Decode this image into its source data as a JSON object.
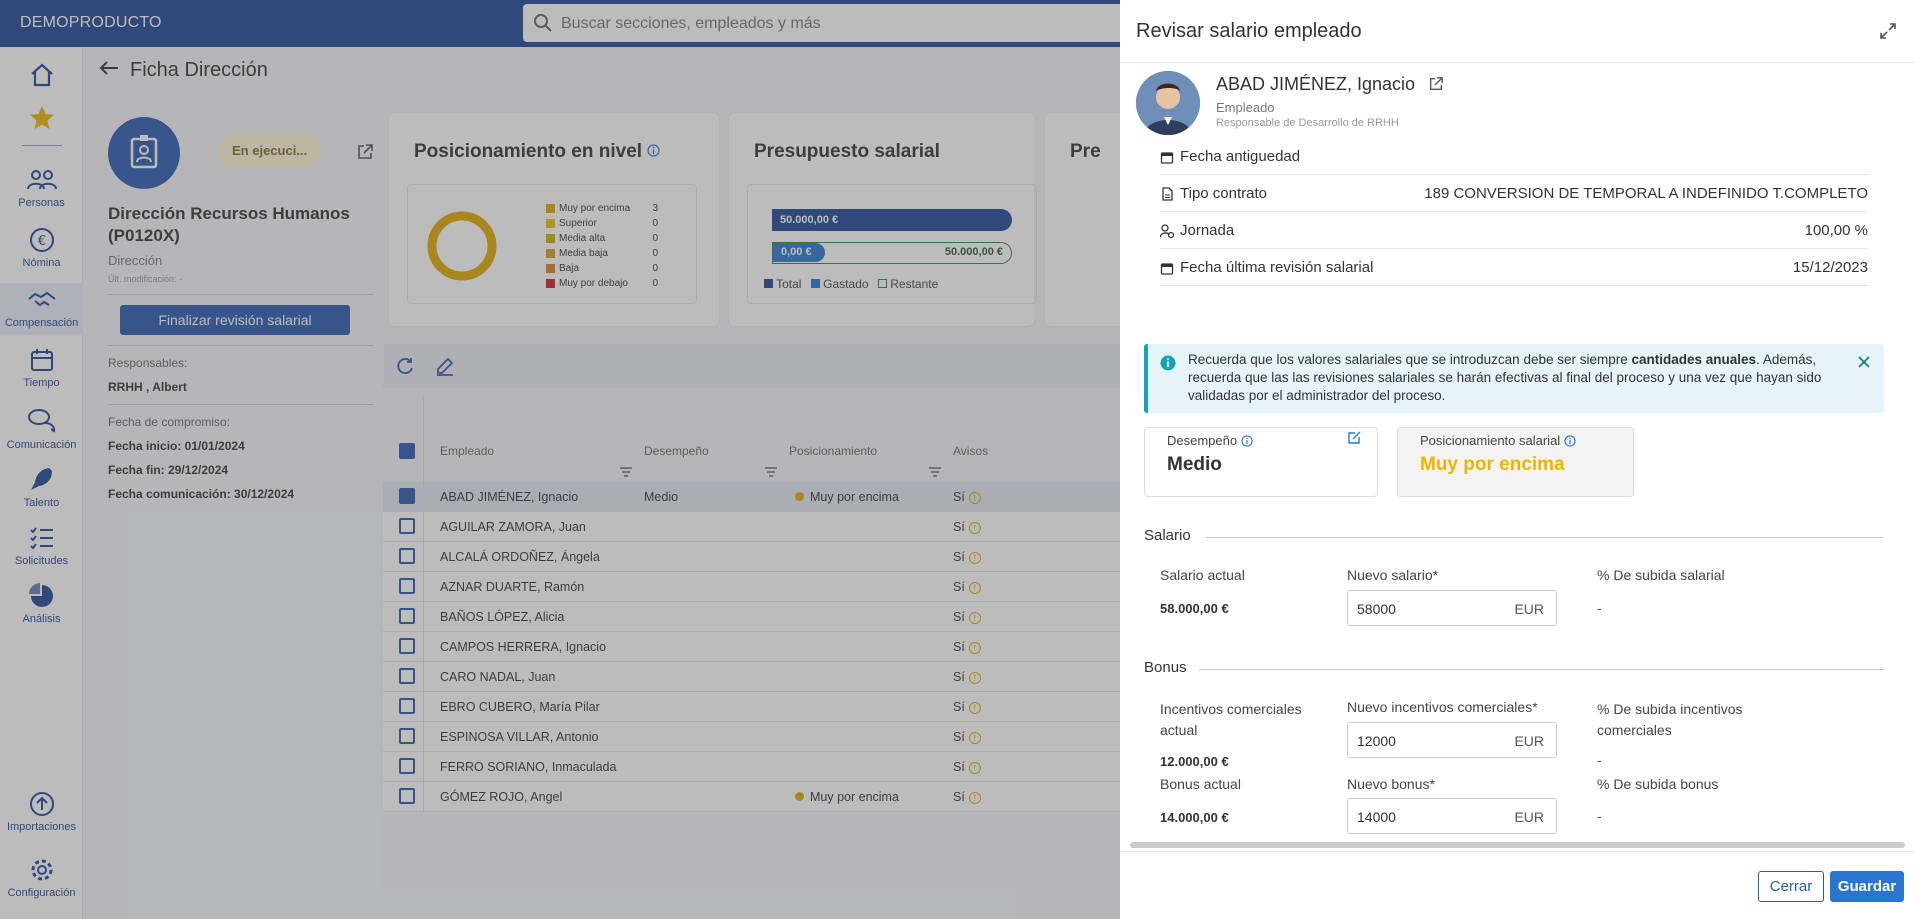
{
  "app": {
    "brand": "DEMOPRODUCTO",
    "search_placeholder": "Buscar secciones, empleados y más"
  },
  "sidebar": {
    "items": [
      {
        "label": "",
        "icon": "home-icon"
      },
      {
        "label": "",
        "icon": "star-icon"
      },
      {
        "label": "Personas",
        "icon": "people-icon"
      },
      {
        "label": "Nómina",
        "icon": "euro-icon"
      },
      {
        "label": "Compensación",
        "icon": "handshake-icon"
      },
      {
        "label": "Tiempo",
        "icon": "calendar-icon"
      },
      {
        "label": "Comunicación",
        "icon": "chat-icon"
      },
      {
        "label": "Talento",
        "icon": "rocket-icon"
      },
      {
        "label": "Solicitudes",
        "icon": "list-icon"
      },
      {
        "label": "Análisis",
        "icon": "pie-icon"
      },
      {
        "label": "Importaciones",
        "icon": "upload-icon"
      },
      {
        "label": "Configuración",
        "icon": "gear-icon"
      }
    ]
  },
  "page": {
    "title": "Ficha Dirección",
    "status": "En ejecuci...",
    "dept_title": "Dirección Recursos Humanos (P0120X)",
    "dept_type": "Dirección",
    "last_modified": "Últ. modificación: -",
    "action_button": "Finalizar revisión salarial",
    "responsables_label": "Responsables:",
    "responsable": "RRHH , Albert",
    "compromiso_label": "Fecha de compromiso:",
    "fecha_inicio": "Fecha inicio: 01/01/2024",
    "fecha_fin": "Fecha fin: 29/12/2024",
    "fecha_comunicacion": "Fecha comunicación: 30/12/2024"
  },
  "cards": {
    "posicionamiento": {
      "title": "Posicionamiento en nivel",
      "legend": [
        {
          "label": "Muy por encima",
          "value": "3",
          "color": "#e0a800"
        },
        {
          "label": "Superior",
          "value": "0",
          "color": "#f0c000"
        },
        {
          "label": "Media alta",
          "value": "0",
          "color": "#c8b400"
        },
        {
          "label": "Media baja",
          "value": "0",
          "color": "#d4a020"
        },
        {
          "label": "Baja",
          "value": "0",
          "color": "#e08020"
        },
        {
          "label": "Muy por debajo",
          "value": "0",
          "color": "#d82020"
        }
      ]
    },
    "presupuesto": {
      "title": "Presupuesto salarial",
      "total": "50.000,00 €",
      "gastado": "0,00 €",
      "restante": "50.000,00 €",
      "legend": [
        "Total",
        "Gastado",
        "Restante"
      ]
    },
    "third_title": "Pre"
  },
  "grid": {
    "columns": [
      "Empleado",
      "Desempeño",
      "Posicionamiento",
      "Avisos"
    ],
    "rows": [
      {
        "name": "ABAD JIMÉNEZ, Ignacio",
        "desempeno": "Medio",
        "posicionamiento": "Muy por encima",
        "avisos": "Sí",
        "selected": true
      },
      {
        "name": "AGUILAR ZAMORA, Juan",
        "desempeno": "",
        "posicionamiento": "",
        "avisos": "Sí",
        "selected": false
      },
      {
        "name": "ALCALÁ ORDOÑEZ, Ángela",
        "desempeno": "",
        "posicionamiento": "",
        "avisos": "Sí",
        "selected": false
      },
      {
        "name": "AZNAR DUARTE, Ramón",
        "desempeno": "",
        "posicionamiento": "",
        "avisos": "Sí",
        "selected": false
      },
      {
        "name": "BAÑOS LÓPEZ, Alicia",
        "desempeno": "",
        "posicionamiento": "",
        "avisos": "Sí",
        "selected": false
      },
      {
        "name": "CAMPOS HERRERA, Ignacio",
        "desempeno": "",
        "posicionamiento": "",
        "avisos": "Sí",
        "selected": false
      },
      {
        "name": "CARO NADAL, Juan",
        "desempeno": "",
        "posicionamiento": "",
        "avisos": "Sí",
        "selected": false
      },
      {
        "name": "EBRO CUBERO, María Pilar",
        "desempeno": "",
        "posicionamiento": "",
        "avisos": "Sí",
        "selected": false
      },
      {
        "name": "ESPINOSA VILLAR, Antonio",
        "desempeno": "",
        "posicionamiento": "",
        "avisos": "Sí",
        "selected": false
      },
      {
        "name": "FERRO SORIANO, Inmaculada",
        "desempeno": "",
        "posicionamiento": "",
        "avisos": "Sí",
        "selected": false
      },
      {
        "name": "GÓMEZ ROJO, Angel",
        "desempeno": "",
        "posicionamiento": "Muy por encima",
        "avisos": "Sí",
        "selected": false
      }
    ]
  },
  "panel": {
    "title": "Revisar salario empleado",
    "employee_name": "ABAD JIMÉNEZ, Ignacio",
    "employee_type": "Empleado",
    "employee_position": "Responsable de Desarrollo de RRHH",
    "info": [
      {
        "key": "Fecha antiguedad",
        "value": "",
        "icon": "calendar-icon"
      },
      {
        "key": "Tipo contrato",
        "value": "189 CONVERSION DE TEMPORAL A INDEFINIDO T.COMPLETO",
        "icon": "document-icon"
      },
      {
        "key": "Jornada",
        "value": "100,00 %",
        "icon": "user-clock-icon"
      },
      {
        "key": "Fecha última revisión salarial",
        "value": "15/12/2023",
        "icon": "calendar-icon"
      }
    ],
    "alert_pre": "Recuerda que los valores salariales que se introduzcan debe ser siempre ",
    "alert_bold": "cantidades anuales",
    "alert_post": ". Además, recuerda que las las revisiones salariales se harán efectivas al final del proceso y una vez que hayan sido validadas por el administrador del proceso.",
    "desempeno_label": "Desempeño",
    "desempeno_value": "Medio",
    "posicionamiento_label": "Posicionamiento salarial",
    "posicionamiento_value": "Muy por encima",
    "salario": {
      "section": "Salario",
      "actual_label": "Salario actual",
      "actual_value": "58.000,00 €",
      "nuevo_label": "Nuevo salario*",
      "nuevo_value": "58000",
      "currency": "EUR",
      "subida_label": "% De subida salarial",
      "subida_value": "-"
    },
    "bonus": {
      "section": "Bonus",
      "inc_actual_label": "Incentivos comerciales actual",
      "inc_actual_value": "12.000,00 €",
      "inc_nuevo_label": "Nuevo incentivos comerciales*",
      "inc_nuevo_value": "12000",
      "inc_subida_label": "% De subida incentivos comerciales",
      "inc_subida_value": "-",
      "bonus_actual_label": "Bonus actual",
      "bonus_actual_value": "14.000,00 €",
      "bonus_nuevo_label": "Nuevo bonus*",
      "bonus_nuevo_value": "14000",
      "bonus_subida_label": "% De subida bonus",
      "bonus_subida_value": "-",
      "currency": "EUR"
    },
    "cancel": "Cerrar",
    "save": "Guardar"
  }
}
